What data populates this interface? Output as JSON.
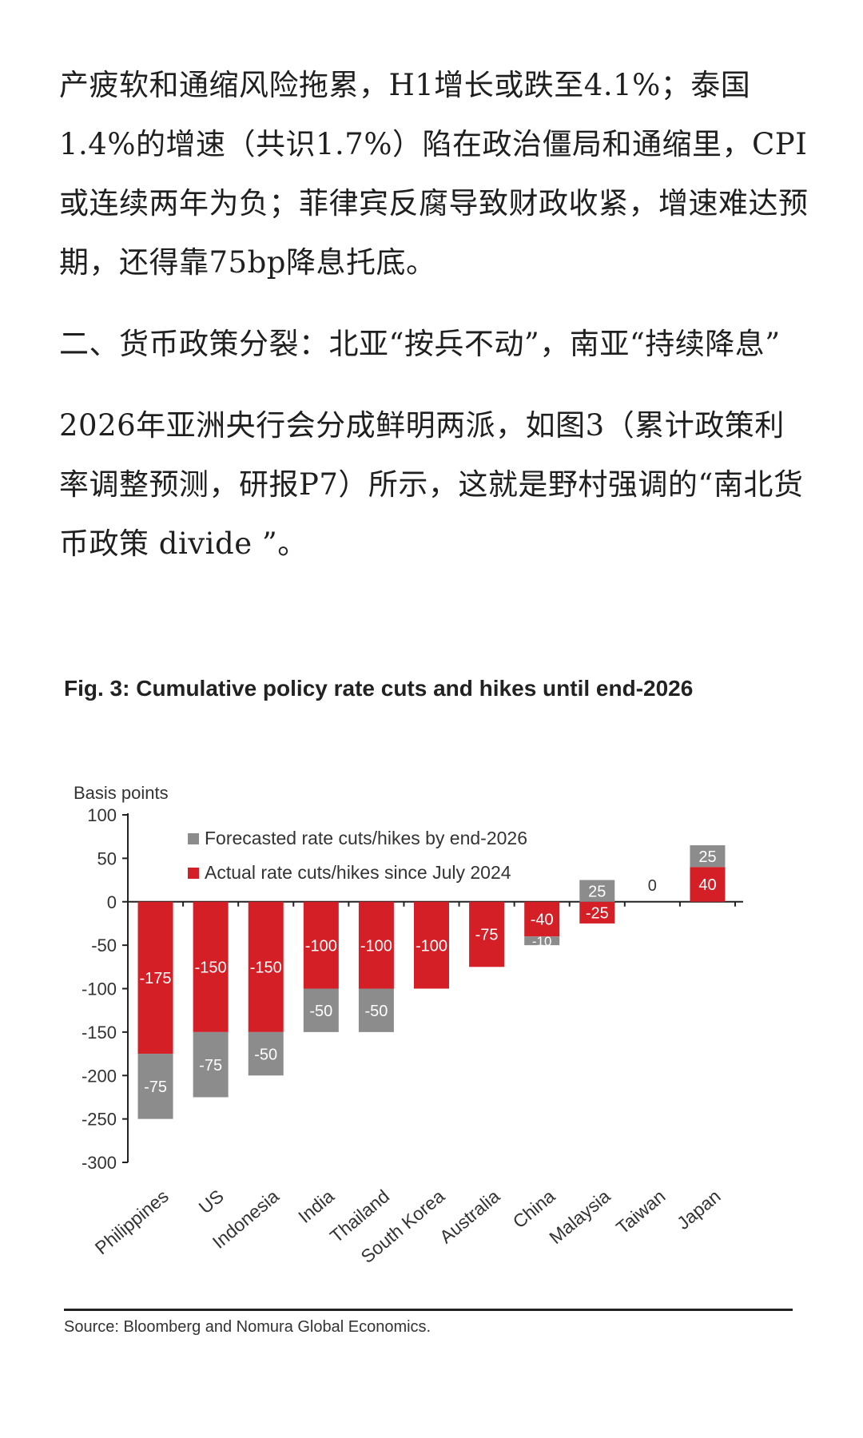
{
  "article": {
    "paragraphs": [
      "产疲软和通缩风险拖累，H1增长或跌至4.1%；泰国1.4%的增速（共识1.7%）陷在政治僵局和通缩里，CPI或连续两年为负；菲律宾反腐导致财政收紧，增速难达预期，还得靠75bp降息托底。",
      "二、货币政策分裂：北亚“按兵不动”，南亚“持续降息”",
      "2026年亚洲央行会分成鲜明两派，如图3（累计政策利率调整预测，研报P7）所示，这就是野村强调的“南北货币政策 divide ”。"
    ]
  },
  "figure": {
    "title": "Fig. 3: Cumulative policy rate cuts and hikes until end-2026",
    "source": "Source: Bloomberg and Nomura Global Economics."
  },
  "chart_data": {
    "type": "bar",
    "stacked": true,
    "ylabel": "Basis points",
    "ylim": [
      -300,
      100
    ],
    "yticks": [
      100,
      50,
      0,
      -50,
      -100,
      -150,
      -200,
      -250,
      -300
    ],
    "legend_position": "top",
    "categories": [
      "Philippines",
      "US",
      "Indonesia",
      "India",
      "Thailand",
      "South Korea",
      "Australia",
      "China",
      "Malaysia",
      "Taiwan",
      "Japan"
    ],
    "series": [
      {
        "name": "Actual rate cuts/hikes since July 2024",
        "color": "#d41f26",
        "values": [
          -175,
          -150,
          -150,
          -100,
          -100,
          -100,
          -75,
          -40,
          -25,
          0,
          40
        ]
      },
      {
        "name": "Forecasted rate cuts/hikes by end-2026",
        "color": "#8c8c8c",
        "values": [
          -75,
          -75,
          -50,
          -50,
          -50,
          0,
          0,
          -10,
          25,
          0,
          25
        ]
      }
    ],
    "zero_labels": {
      "Taiwan": "0"
    }
  }
}
